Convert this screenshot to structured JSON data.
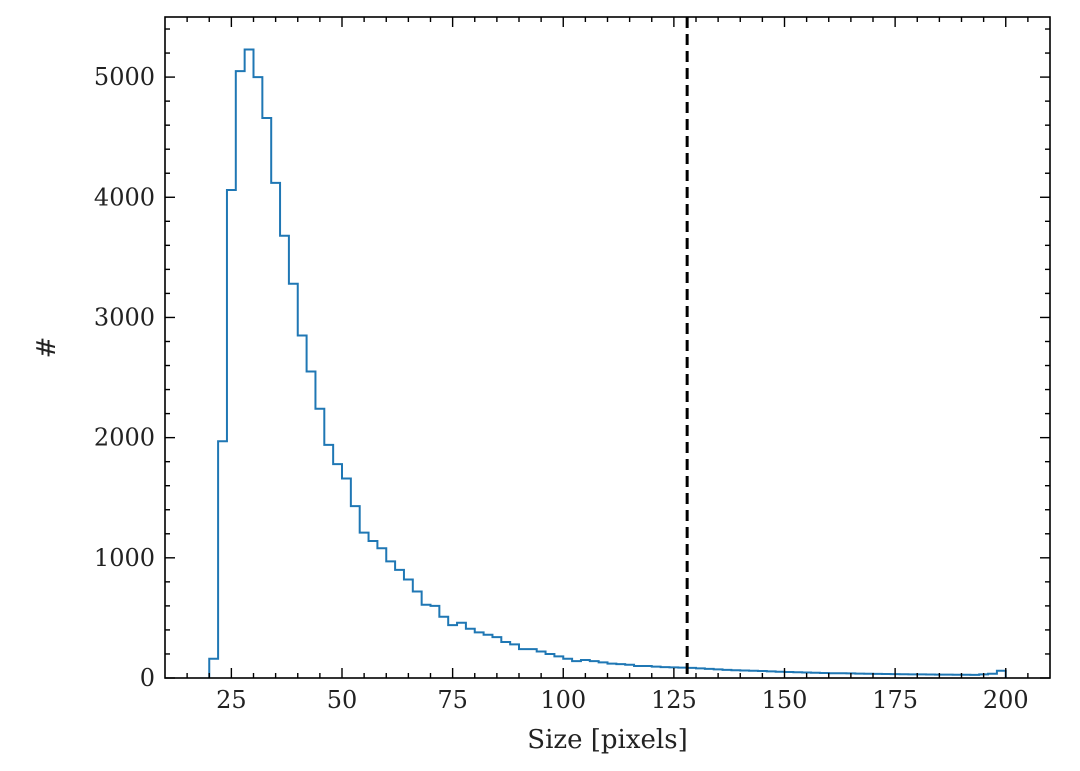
{
  "chart_data": {
    "type": "histogram",
    "title": "",
    "xlabel": "Size [pixels]",
    "ylabel": "#",
    "xlim": [
      10,
      210
    ],
    "ylim": [
      0,
      5500
    ],
    "x_ticks": [
      25,
      50,
      75,
      100,
      125,
      150,
      175,
      200
    ],
    "y_ticks": [
      0,
      1000,
      2000,
      3000,
      4000,
      5000
    ],
    "x_tick_labels": [
      "25",
      "50",
      "75",
      "100",
      "125",
      "150",
      "175",
      "200"
    ],
    "y_tick_labels": [
      "0",
      "1000",
      "2000",
      "3000",
      "4000",
      "5000"
    ],
    "grid": false,
    "legend": "none",
    "series": [
      {
        "color": "#1f77b4",
        "bin_edges": [
          20,
          22,
          24,
          26,
          28,
          30,
          32,
          34,
          36,
          38,
          40,
          42,
          44,
          46,
          48,
          50,
          52,
          54,
          56,
          58,
          60,
          62,
          64,
          66,
          68,
          70,
          72,
          74,
          76,
          78,
          80,
          82,
          84,
          86,
          88,
          90,
          92,
          94,
          96,
          98,
          100,
          102,
          104,
          106,
          108,
          110,
          112,
          114,
          116,
          118,
          120,
          122,
          124,
          126,
          128,
          130,
          132,
          134,
          136,
          138,
          140,
          142,
          144,
          146,
          148,
          150,
          152,
          154,
          156,
          158,
          160,
          162,
          164,
          166,
          168,
          170,
          172,
          174,
          176,
          178,
          180,
          182,
          184,
          186,
          188,
          190,
          192,
          194,
          196,
          198,
          200
        ],
        "counts": [
          160,
          1970,
          4060,
          5050,
          5230,
          5000,
          4660,
          4120,
          3680,
          3280,
          2850,
          2550,
          2240,
          1940,
          1780,
          1660,
          1430,
          1210,
          1140,
          1080,
          970,
          900,
          820,
          720,
          610,
          600,
          510,
          440,
          460,
          410,
          380,
          360,
          340,
          300,
          280,
          240,
          240,
          220,
          200,
          180,
          160,
          140,
          150,
          140,
          130,
          120,
          115,
          110,
          100,
          100,
          95,
          90,
          88,
          86,
          84,
          80,
          76,
          72,
          68,
          65,
          62,
          60,
          58,
          55,
          52,
          50,
          48,
          46,
          44,
          42,
          40,
          40,
          38,
          36,
          35,
          34,
          33,
          32,
          31,
          30,
          30,
          29,
          28,
          28,
          27,
          27,
          26,
          30,
          35,
          60
        ]
      }
    ],
    "annotations": [
      {
        "type": "vline",
        "x": 128,
        "style": "dashed",
        "color": "#000000"
      }
    ]
  }
}
